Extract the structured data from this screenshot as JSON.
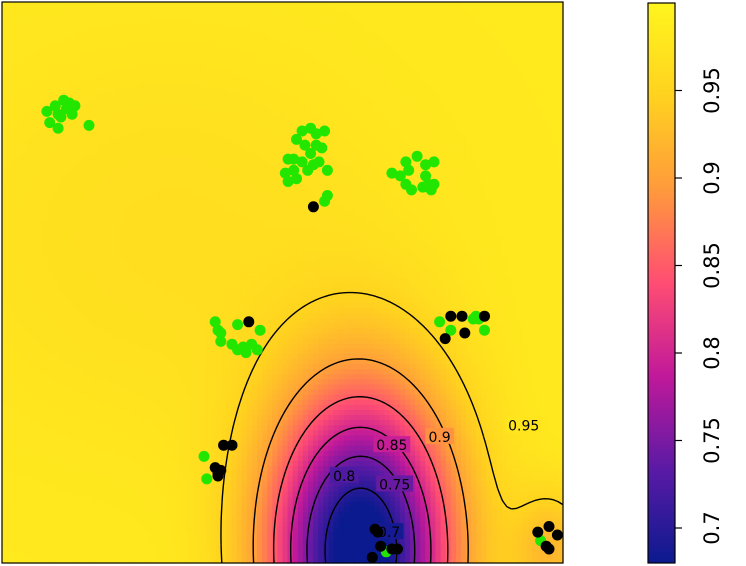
{
  "chart_data": {
    "type": "heatmap",
    "title": "",
    "xlabel": "",
    "ylabel": "",
    "xlim": [
      0,
      1
    ],
    "ylim": [
      0,
      1
    ],
    "color_scale": {
      "min": 0.68,
      "max": 1.0,
      "stops": [
        "#0b1a8f",
        "#5a1aa5",
        "#c0199a",
        "#ff4d73",
        "#ff9a3c",
        "#ffd21f",
        "#fff51e"
      ],
      "ticks": [
        0.7,
        0.75,
        0.8,
        0.85,
        0.9,
        0.95
      ],
      "tick_labels": [
        "0.7",
        "0.75",
        "0.8",
        "0.85",
        "0.9",
        "0.95"
      ]
    },
    "surface": {
      "base": 0.985,
      "bumps": [
        {
          "cx": 0.64,
          "cy": 0.02,
          "amp": 0.33,
          "sx": 0.115,
          "sy": 0.2
        },
        {
          "cx": 0.98,
          "cy": 0.02,
          "amp": 0.06,
          "sx": 0.05,
          "sy": 0.08
        },
        {
          "cx": 0.3,
          "cy": 0.58,
          "amp": 0.02,
          "sx": 0.35,
          "sy": 0.3
        }
      ]
    },
    "contour_levels": [
      0.7,
      0.75,
      0.8,
      0.85,
      0.9,
      0.95
    ],
    "contour_labels": [
      {
        "text": "0.95",
        "x": 0.93,
        "y": 0.245
      },
      {
        "text": "0.9",
        "x": 0.78,
        "y": 0.225
      },
      {
        "text": "0.85",
        "x": 0.695,
        "y": 0.21
      },
      {
        "text": "0.8",
        "x": 0.61,
        "y": 0.155
      },
      {
        "text": "0.75",
        "x": 0.7,
        "y": 0.14
      },
      {
        "text": "0.7",
        "x": 0.69,
        "y": 0.055
      }
    ],
    "series": [
      {
        "color": "#22e600",
        "points": [
          [
            0.08,
            0.805
          ],
          [
            0.095,
            0.815
          ],
          [
            0.1,
            0.8
          ],
          [
            0.115,
            0.81
          ],
          [
            0.12,
            0.82
          ],
          [
            0.13,
            0.815
          ],
          [
            0.105,
            0.795
          ],
          [
            0.085,
            0.785
          ],
          [
            0.1,
            0.775
          ],
          [
            0.155,
            0.78
          ],
          [
            0.125,
            0.8
          ],
          [
            0.11,
            0.825
          ],
          [
            0.525,
            0.755
          ],
          [
            0.535,
            0.77
          ],
          [
            0.55,
            0.775
          ],
          [
            0.56,
            0.765
          ],
          [
            0.575,
            0.77
          ],
          [
            0.54,
            0.745
          ],
          [
            0.56,
            0.745
          ],
          [
            0.55,
            0.73
          ],
          [
            0.57,
            0.74
          ],
          [
            0.52,
            0.72
          ],
          [
            0.535,
            0.715
          ],
          [
            0.555,
            0.71
          ],
          [
            0.565,
            0.715
          ],
          [
            0.51,
            0.72
          ],
          [
            0.52,
            0.7
          ],
          [
            0.545,
            0.7
          ],
          [
            0.525,
            0.685
          ],
          [
            0.505,
            0.695
          ],
          [
            0.51,
            0.68
          ],
          [
            0.58,
            0.7
          ],
          [
            0.58,
            0.655
          ],
          [
            0.575,
            0.645
          ],
          [
            0.695,
            0.695
          ],
          [
            0.71,
            0.69
          ],
          [
            0.72,
            0.715
          ],
          [
            0.74,
            0.725
          ],
          [
            0.755,
            0.71
          ],
          [
            0.77,
            0.715
          ],
          [
            0.725,
            0.7
          ],
          [
            0.755,
            0.69
          ],
          [
            0.76,
            0.675
          ],
          [
            0.72,
            0.675
          ],
          [
            0.73,
            0.665
          ],
          [
            0.75,
            0.67
          ],
          [
            0.765,
            0.665
          ],
          [
            0.77,
            0.675
          ],
          [
            0.38,
            0.43
          ],
          [
            0.385,
            0.415
          ],
          [
            0.39,
            0.41
          ],
          [
            0.42,
            0.425
          ],
          [
            0.46,
            0.415
          ],
          [
            0.39,
            0.395
          ],
          [
            0.41,
            0.39
          ],
          [
            0.42,
            0.38
          ],
          [
            0.435,
            0.375
          ],
          [
            0.455,
            0.38
          ],
          [
            0.43,
            0.385
          ],
          [
            0.445,
            0.39
          ],
          [
            0.78,
            0.43
          ],
          [
            0.84,
            0.435
          ],
          [
            0.845,
            0.44
          ],
          [
            0.85,
            0.435
          ],
          [
            0.86,
            0.415
          ],
          [
            0.8,
            0.415
          ],
          [
            0.36,
            0.19
          ],
          [
            0.365,
            0.15
          ],
          [
            0.685,
            0.02
          ],
          [
            0.96,
            0.04
          ]
        ]
      },
      {
        "color": "#000000",
        "points": [
          [
            0.555,
            0.635
          ],
          [
            0.44,
            0.43
          ],
          [
            0.8,
            0.44
          ],
          [
            0.82,
            0.44
          ],
          [
            0.86,
            0.44
          ],
          [
            0.79,
            0.4
          ],
          [
            0.825,
            0.41
          ],
          [
            0.395,
            0.21
          ],
          [
            0.41,
            0.21
          ],
          [
            0.38,
            0.17
          ],
          [
            0.385,
            0.16
          ],
          [
            0.39,
            0.165
          ],
          [
            0.385,
            0.155
          ],
          [
            0.665,
            0.06
          ],
          [
            0.67,
            0.055
          ],
          [
            0.675,
            0.03
          ],
          [
            0.695,
            0.025
          ],
          [
            0.705,
            0.025
          ],
          [
            0.66,
            0.01
          ],
          [
            0.975,
            0.065
          ],
          [
            0.99,
            0.05
          ],
          [
            0.97,
            0.03
          ],
          [
            0.975,
            0.025
          ],
          [
            0.955,
            0.055
          ]
        ]
      }
    ]
  }
}
